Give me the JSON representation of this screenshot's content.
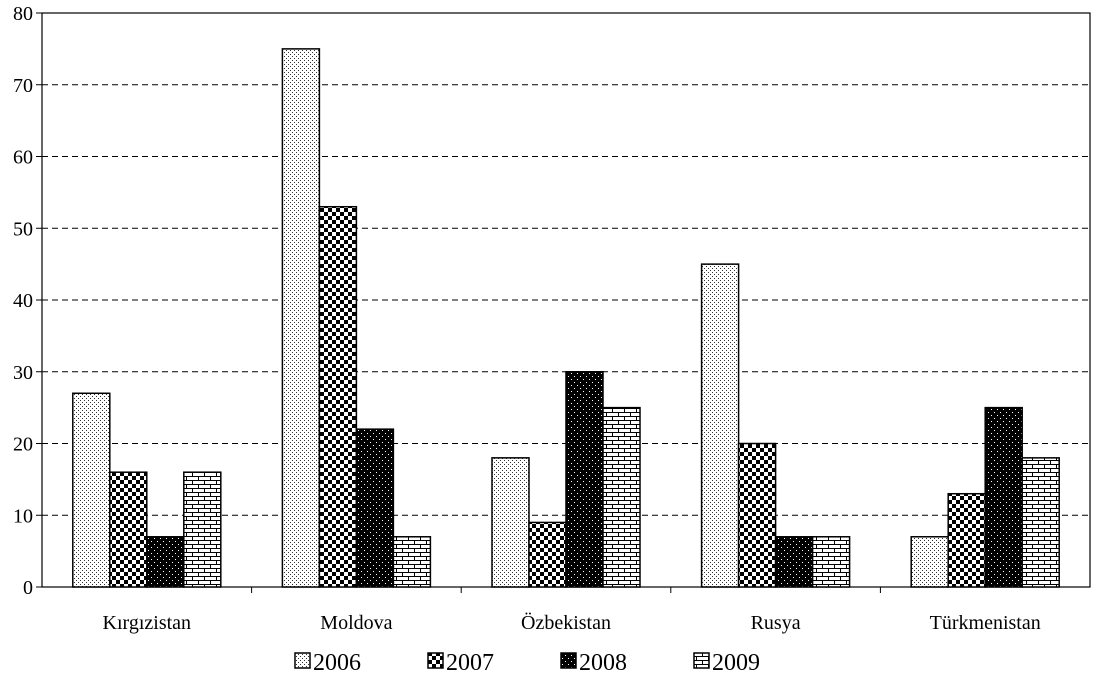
{
  "chart_data": {
    "type": "bar",
    "title": "",
    "xlabel": "",
    "ylabel": "",
    "ylim": [
      0,
      80
    ],
    "yticks": [
      "0",
      "10",
      "20",
      "30",
      "40",
      "50",
      "60",
      "70",
      "80"
    ],
    "grid": "horizontal dashed",
    "legend_position": "bottom",
    "categories": [
      "Kırgızistan",
      "Moldova",
      "Özbekistan",
      "Rusya",
      "Türkmenistan"
    ],
    "series": [
      {
        "name": "2006",
        "values": [
          27,
          75,
          18,
          45,
          7
        ],
        "pattern": "fine-dots"
      },
      {
        "name": "2007",
        "values": [
          16,
          53,
          9,
          20,
          13
        ],
        "pattern": "checkerboard"
      },
      {
        "name": "2008",
        "values": [
          7,
          22,
          30,
          7,
          25
        ],
        "pattern": "dark-dotted"
      },
      {
        "name": "2009",
        "values": [
          16,
          7,
          25,
          7,
          18
        ],
        "pattern": "brick"
      }
    ]
  }
}
